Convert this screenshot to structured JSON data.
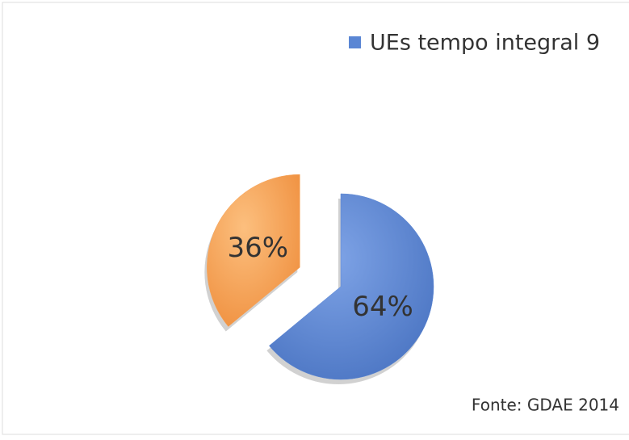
{
  "chart_data": {
    "type": "pie",
    "categories": [
      "UEs tempo integral 9",
      null
    ],
    "values": [
      64,
      36
    ],
    "value_labels": [
      "64%",
      "36%"
    ],
    "colors": [
      "#5a86d4",
      "#f7a45a"
    ],
    "annotation": "Fonte: GDAE 2014",
    "legend": "top-right"
  }
}
